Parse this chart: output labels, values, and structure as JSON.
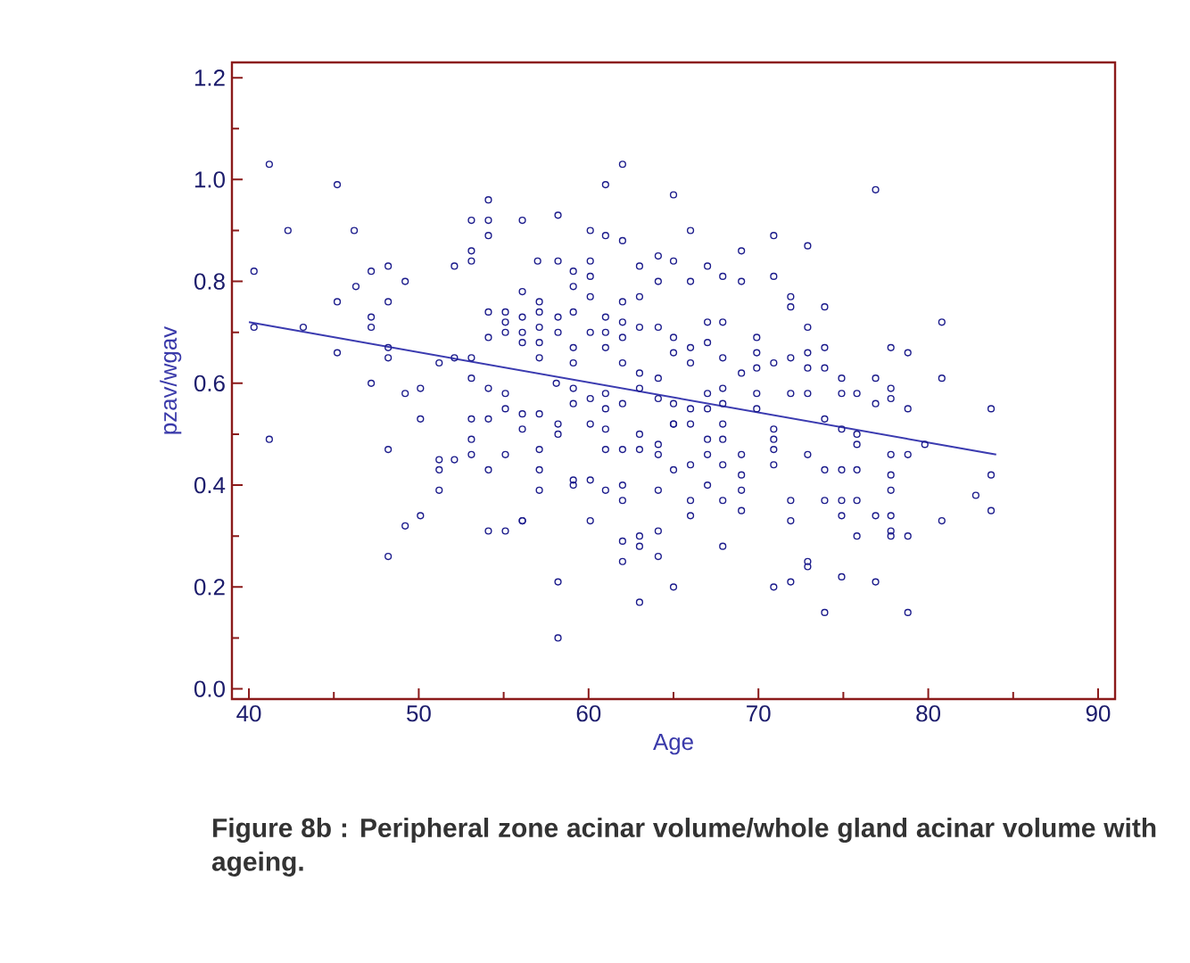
{
  "chart_data": {
    "type": "scatter",
    "xlabel": "Age",
    "ylabel": "pzav/wgav",
    "annotations": [
      "Figure 8b : Peripheral zone acinar volume/whole gland acinar volume with ageing."
    ],
    "xlim": [
      39,
      91
    ],
    "ylim": [
      -0.02,
      1.23
    ],
    "xticks": [
      40,
      50,
      60,
      70,
      80,
      90
    ],
    "yticks": [
      {
        "value": 0,
        "label": "0.0"
      },
      0.2,
      0.4,
      0.6,
      0.8,
      {
        "value": 1,
        "label": "1.0"
      },
      1.2
    ],
    "marker": "circle",
    "series": [
      {
        "color": "#1c1c8c",
        "x": [
          41.2,
          45.2,
          42.3,
          46.2,
          40.3,
          47.2,
          48.2,
          49.2,
          46.3,
          45.2,
          48.2,
          47.2,
          47.2,
          40.3,
          43.2,
          45.2,
          48.2,
          48.2,
          47.2,
          49.2,
          50.1,
          50.1,
          41.2,
          48.2,
          49.2,
          50.1,
          48.2,
          52.1,
          53.1,
          54.1,
          54.1,
          54.1,
          53.1,
          53.1,
          51.2,
          52.1,
          53.1,
          53.1,
          54.1,
          55.1,
          53.1,
          54.1,
          55.1,
          53.1,
          51.2,
          51.2,
          51.2,
          52.1,
          53.1,
          54.1,
          55.1,
          54.1,
          55.1,
          56.1,
          54.1,
          55.1,
          54.1,
          55.1,
          55.1,
          62.0,
          61.0,
          65.0,
          58.2,
          56.1,
          60.1,
          61.0,
          62.0,
          66.0,
          70.9,
          72.9,
          69.0,
          67.0,
          67.9,
          69.0,
          64.1,
          63.0,
          65.0,
          57.0,
          58.2,
          59.1,
          59.1,
          60.1,
          60.1,
          60.1,
          64.1,
          63.0,
          62.0,
          66.0,
          70.9,
          71.9,
          71.9,
          72.9,
          56.1,
          57.1,
          57.1,
          56.1,
          56.1,
          56.1,
          57.1,
          57.1,
          57.1,
          58.2,
          58.2,
          59.1,
          59.1,
          59.1,
          60.1,
          61.0,
          61.0,
          61.0,
          62.0,
          62.0,
          62.0,
          63.0,
          64.1,
          65.0,
          65.0,
          66.0,
          66.0,
          67.0,
          67.0,
          67.9,
          67.9,
          69.0,
          69.9,
          69.9,
          69.9,
          70.9,
          71.9,
          72.9,
          72.9,
          58.1,
          59.1,
          59.1,
          60.1,
          61.0,
          62.0,
          61.0,
          63.0,
          63.0,
          64.1,
          64.1,
          65.0,
          65.0,
          66.0,
          66.0,
          67.0,
          67.0,
          67.9,
          67.9,
          67.9,
          69.9,
          69.9,
          70.9,
          70.9,
          70.9,
          70.9,
          71.9,
          72.9,
          56.1,
          56.1,
          57.1,
          58.2,
          58.2,
          60.1,
          61.0,
          61.0,
          62.0,
          63.0,
          63.0,
          64.1,
          64.1,
          65.0,
          65.0,
          66.0,
          67.0,
          67.0,
          67.9,
          67.9,
          69.0,
          57.1,
          57.1,
          59.1,
          59.1,
          60.1,
          61.0,
          62.0,
          62.0,
          64.1,
          66.0,
          66.0,
          67.0,
          67.9,
          69.0,
          69.0,
          69.0,
          71.9,
          71.9,
          57.1,
          56.1,
          60.1,
          62.0,
          63.0,
          63.0,
          64.1,
          62.0,
          64.1,
          67.9,
          58.2,
          63.0,
          65.0,
          70.9,
          71.9,
          72.9,
          58.2,
          76.9,
          73.9,
          80.8,
          77.8,
          78.8,
          73.9,
          73.9,
          74.9,
          74.9,
          75.8,
          76.9,
          76.9,
          77.8,
          77.8,
          78.8,
          80.8,
          83.7,
          73.9,
          74.9,
          75.8,
          75.8,
          79.8,
          72.9,
          73.9,
          74.9,
          75.8,
          77.8,
          78.8,
          77.8,
          77.8,
          82.8,
          83.7,
          83.7,
          73.9,
          74.9,
          75.8,
          74.9,
          76.9,
          77.8,
          80.8,
          75.8,
          77.8,
          77.8,
          78.8,
          72.9,
          74.9,
          76.9,
          73.9,
          78.8
        ],
        "values": [
          1.03,
          0.99,
          0.9,
          0.9,
          0.82,
          0.82,
          0.83,
          0.8,
          0.79,
          0.76,
          0.76,
          0.73,
          0.71,
          0.71,
          0.71,
          0.66,
          0.67,
          0.65,
          0.6,
          0.58,
          0.59,
          0.53,
          0.49,
          0.47,
          0.32,
          0.34,
          0.26,
          0.83,
          0.92,
          0.96,
          0.92,
          0.89,
          0.86,
          0.84,
          0.64,
          0.65,
          0.65,
          0.61,
          0.59,
          0.58,
          0.53,
          0.53,
          0.55,
          0.49,
          0.45,
          0.43,
          0.39,
          0.45,
          0.46,
          0.43,
          0.46,
          0.31,
          0.31,
          0.33,
          0.74,
          0.74,
          0.69,
          0.72,
          0.7,
          1.03,
          0.99,
          0.97,
          0.93,
          0.92,
          0.9,
          0.89,
          0.88,
          0.9,
          0.89,
          0.87,
          0.86,
          0.83,
          0.81,
          0.8,
          0.85,
          0.83,
          0.84,
          0.84,
          0.84,
          0.82,
          0.79,
          0.84,
          0.81,
          0.77,
          0.8,
          0.77,
          0.76,
          0.8,
          0.81,
          0.77,
          0.75,
          0.71,
          0.78,
          0.76,
          0.74,
          0.73,
          0.7,
          0.68,
          0.71,
          0.68,
          0.65,
          0.73,
          0.7,
          0.74,
          0.67,
          0.64,
          0.7,
          0.73,
          0.7,
          0.67,
          0.72,
          0.69,
          0.64,
          0.71,
          0.71,
          0.69,
          0.66,
          0.67,
          0.64,
          0.72,
          0.68,
          0.72,
          0.65,
          0.62,
          0.69,
          0.66,
          0.63,
          0.64,
          0.65,
          0.66,
          0.63,
          0.6,
          0.59,
          0.56,
          0.57,
          0.58,
          0.56,
          0.55,
          0.62,
          0.59,
          0.61,
          0.57,
          0.56,
          0.52,
          0.55,
          0.52,
          0.58,
          0.55,
          0.59,
          0.56,
          0.52,
          0.58,
          0.55,
          0.51,
          0.49,
          0.47,
          0.44,
          0.58,
          0.58,
          0.54,
          0.51,
          0.54,
          0.52,
          0.5,
          0.52,
          0.51,
          0.47,
          0.47,
          0.5,
          0.47,
          0.48,
          0.46,
          0.52,
          0.43,
          0.44,
          0.49,
          0.46,
          0.49,
          0.44,
          0.46,
          0.47,
          0.43,
          0.41,
          0.4,
          0.41,
          0.39,
          0.4,
          0.37,
          0.39,
          0.37,
          0.34,
          0.4,
          0.37,
          0.42,
          0.39,
          0.35,
          0.37,
          0.33,
          0.39,
          0.33,
          0.33,
          0.29,
          0.3,
          0.28,
          0.31,
          0.25,
          0.26,
          0.28,
          0.21,
          0.17,
          0.2,
          0.2,
          0.21,
          0.24,
          0.1,
          0.98,
          0.75,
          0.72,
          0.67,
          0.66,
          0.67,
          0.63,
          0.61,
          0.58,
          0.58,
          0.61,
          0.56,
          0.59,
          0.57,
          0.55,
          0.61,
          0.55,
          0.53,
          0.51,
          0.5,
          0.48,
          0.48,
          0.46,
          0.43,
          0.43,
          0.43,
          0.46,
          0.46,
          0.42,
          0.39,
          0.38,
          0.42,
          0.35,
          0.37,
          0.37,
          0.37,
          0.34,
          0.34,
          0.34,
          0.33,
          0.3,
          0.31,
          0.3,
          0.3,
          0.25,
          0.22,
          0.21,
          0.15,
          0.15
        ]
      },
      {
        "type": "line",
        "marker": "none",
        "line_style": "solid",
        "color": "#3b3bb0",
        "x": [
          40,
          84
        ],
        "values": [
          0.72,
          0.46
        ]
      }
    ]
  }
}
